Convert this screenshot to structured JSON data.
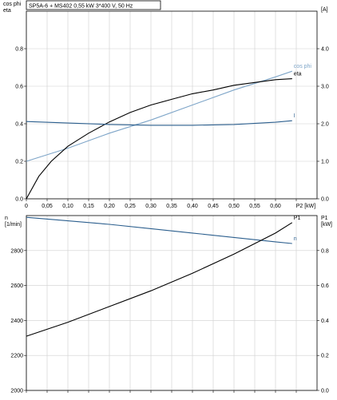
{
  "title": "SP5A-6 + MS402    0,55 kW    3*400 V, 50 Hz",
  "colors": {
    "black": "#000000",
    "dark_blue": "#2c5f8e",
    "light_blue": "#7ea5c8",
    "grid": "#cfcfcf"
  },
  "chart_data": [
    {
      "type": "line",
      "left_axis_label": [
        "cos phi",
        "eta"
      ],
      "right_axis_label": "[A]",
      "xlabel": "P2 [kW]",
      "xlim": [
        0,
        0.7
      ],
      "ylim_left": [
        0,
        1.0
      ],
      "ylim_right": [
        0,
        5.0
      ],
      "x_ticks": [
        "0",
        "0,05",
        "0,10",
        "0,15",
        "0,20",
        "0,25",
        "0,30",
        "0,35",
        "0,40",
        "0,45",
        "0,50",
        "0,55",
        "0,60"
      ],
      "x_tick_values": [
        0,
        0.05,
        0.1,
        0.15,
        0.2,
        0.25,
        0.3,
        0.35,
        0.4,
        0.45,
        0.5,
        0.55,
        0.6
      ],
      "y_ticks_left": [
        "0.0",
        "0.2",
        "0.4",
        "0.6",
        "0.8"
      ],
      "y_tick_values_left": [
        0,
        0.2,
        0.4,
        0.6,
        0.8
      ],
      "y_ticks_right": [
        "0.0",
        "1.0",
        "2.0",
        "3.0",
        "4.0"
      ],
      "y_tick_values_right": [
        0,
        1,
        2,
        3,
        4
      ],
      "grid": true,
      "series": [
        {
          "name": "cos phi",
          "axis": "left",
          "color": "#7ea5c8",
          "x": [
            0,
            0.1,
            0.2,
            0.3,
            0.4,
            0.5,
            0.6,
            0.64
          ],
          "y": [
            0.2,
            0.27,
            0.35,
            0.42,
            0.5,
            0.58,
            0.65,
            0.68
          ]
        },
        {
          "name": "eta",
          "axis": "left",
          "color": "#000000",
          "x": [
            0,
            0.03,
            0.06,
            0.1,
            0.15,
            0.2,
            0.25,
            0.3,
            0.35,
            0.4,
            0.45,
            0.5,
            0.55,
            0.6,
            0.64
          ],
          "y": [
            0.0,
            0.12,
            0.2,
            0.28,
            0.35,
            0.41,
            0.46,
            0.5,
            0.53,
            0.56,
            0.58,
            0.605,
            0.62,
            0.635,
            0.64
          ]
        },
        {
          "name": "I",
          "axis": "right",
          "color": "#2c5f8e",
          "x": [
            0,
            0.1,
            0.2,
            0.3,
            0.4,
            0.5,
            0.6,
            0.64
          ],
          "y": [
            2.06,
            2.02,
            1.98,
            1.96,
            1.96,
            1.98,
            2.04,
            2.08
          ]
        }
      ]
    },
    {
      "type": "line",
      "left_axis_label": [
        "n",
        "[1/min]"
      ],
      "right_axis_label": [
        "P1",
        "[kW]"
      ],
      "xlim": [
        0,
        0.7
      ],
      "ylim_left": [
        2000,
        3000
      ],
      "ylim_right": [
        0,
        1.0
      ],
      "y_ticks_left": [
        "2000",
        "2200",
        "2400",
        "2600",
        "2800"
      ],
      "y_tick_values_left": [
        2000,
        2200,
        2400,
        2600,
        2800
      ],
      "y_ticks_right": [
        "0.0",
        "0.2",
        "0.4",
        "0.6",
        "0.8"
      ],
      "y_tick_values_right": [
        0,
        0.2,
        0.4,
        0.6,
        0.8
      ],
      "grid": true,
      "series": [
        {
          "name": "n",
          "axis": "left",
          "color": "#2c5f8e",
          "x": [
            0,
            0.1,
            0.2,
            0.3,
            0.4,
            0.5,
            0.6,
            0.64
          ],
          "y": [
            2990,
            2970,
            2950,
            2925,
            2900,
            2875,
            2850,
            2840
          ]
        },
        {
          "name": "P1",
          "axis": "right",
          "color": "#000000",
          "x": [
            0,
            0.1,
            0.2,
            0.3,
            0.4,
            0.5,
            0.6,
            0.64
          ],
          "y": [
            0.31,
            0.39,
            0.48,
            0.57,
            0.67,
            0.78,
            0.9,
            0.96
          ]
        }
      ]
    }
  ]
}
